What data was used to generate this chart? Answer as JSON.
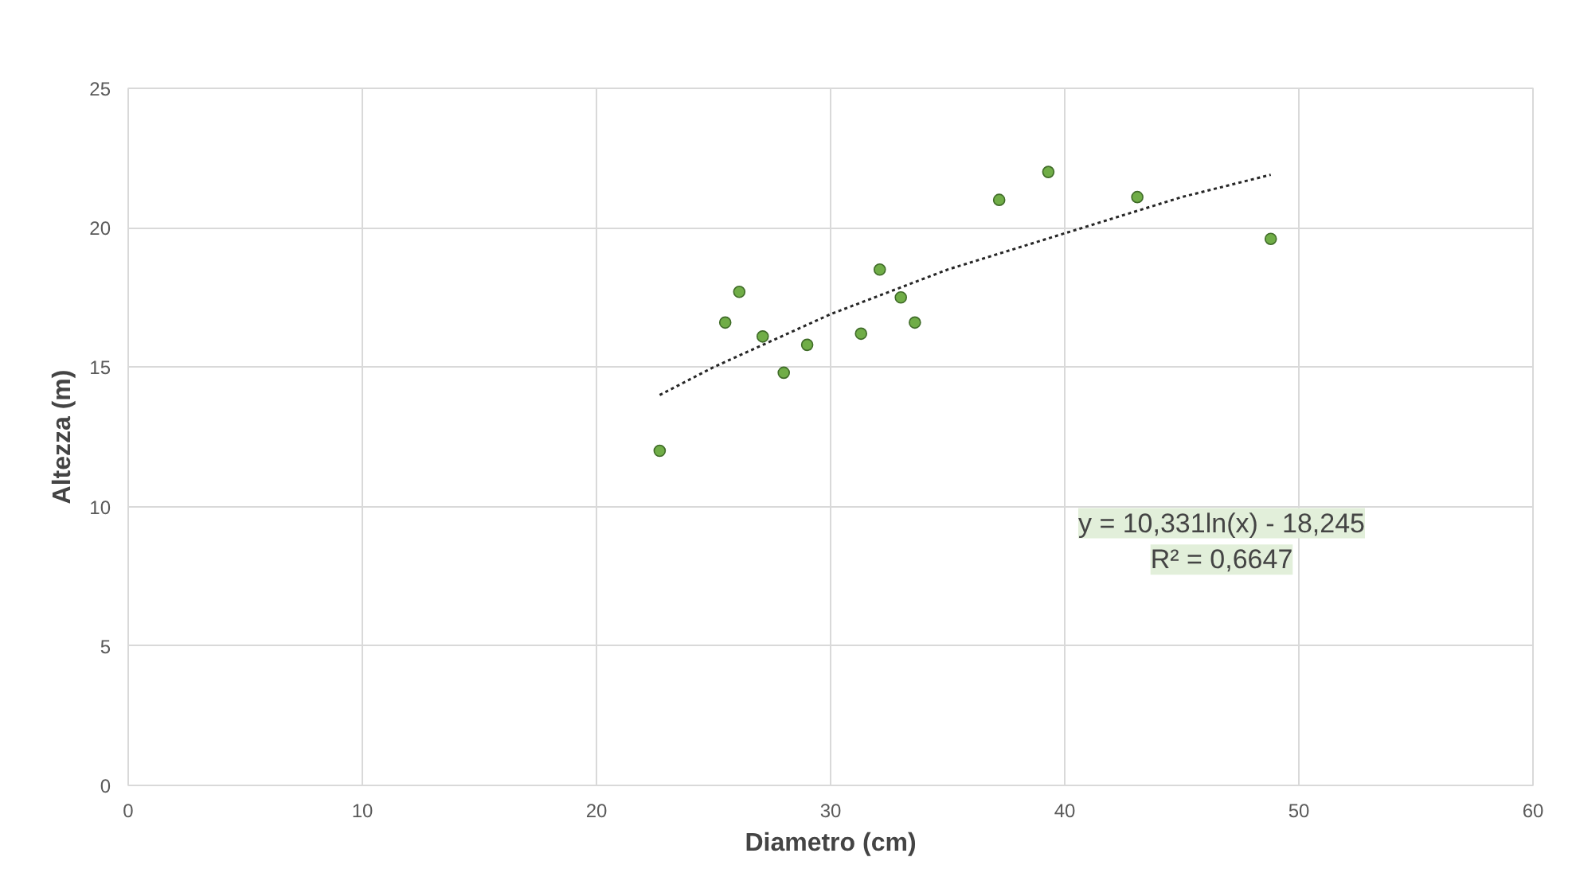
{
  "chart_data": {
    "type": "scatter",
    "xlabel": "Diametro (cm)",
    "ylabel": "Altezza (m)",
    "xlim": [
      0,
      60
    ],
    "xticks": [
      0,
      10,
      20,
      30,
      40,
      50,
      60
    ],
    "ylim": [
      0,
      25
    ],
    "yticks": [
      0,
      5,
      10,
      15,
      20,
      25
    ],
    "grid": true,
    "annotations": [
      "y = 10,331ln(x) - 18,245",
      "R² = 0,6647"
    ],
    "series": [
      {
        "color": "#70ad47",
        "marker": "circle",
        "x": [
          22.7,
          25.5,
          26.1,
          27.1,
          28.0,
          29.0,
          31.3,
          32.1,
          33.0,
          33.6,
          37.2,
          39.3,
          43.1,
          48.8
        ],
        "values": [
          12.0,
          16.6,
          17.7,
          16.1,
          14.8,
          15.8,
          16.2,
          18.5,
          17.5,
          16.6,
          21.0,
          22.0,
          21.1,
          19.6
        ]
      },
      {
        "type": "line",
        "color": "#262626",
        "line_style": "dotted",
        "x": [
          22.7,
          25,
          30,
          35,
          40,
          45,
          48.8
        ],
        "values": [
          14.0,
          15.0,
          16.9,
          18.5,
          19.8,
          21.1,
          21.9
        ]
      }
    ]
  }
}
